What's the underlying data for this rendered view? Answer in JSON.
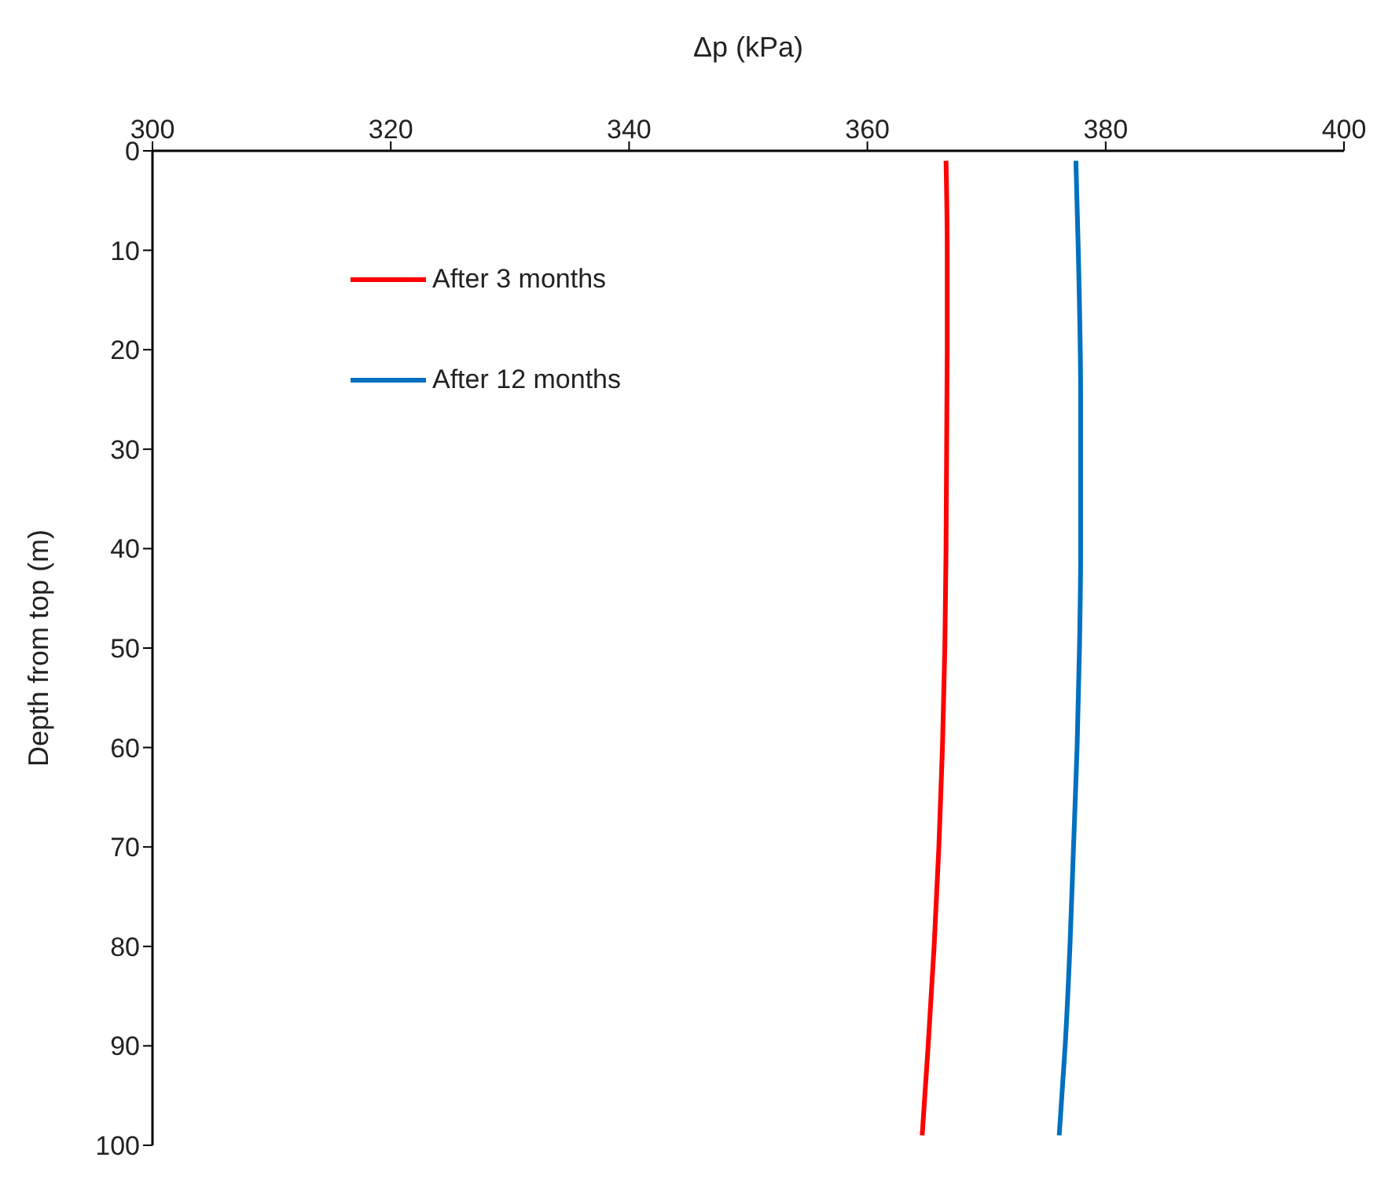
{
  "chart_data": {
    "type": "line",
    "xlabel": "Δp (kPa)",
    "ylabel": "Depth from top (m)",
    "xlim": [
      300,
      400
    ],
    "xticks": [
      300,
      320,
      340,
      360,
      380,
      400
    ],
    "ylim": [
      100,
      0
    ],
    "yticks": [
      0,
      10,
      20,
      30,
      40,
      50,
      60,
      70,
      80,
      90,
      100
    ],
    "grid": false,
    "legend": "top left",
    "marker": "none",
    "line_style": "solid",
    "series": [
      {
        "name": "After 3 months",
        "color": "#ff0000",
        "x": [
          366.6,
          366.7,
          366.7,
          366.6,
          366.5,
          366.3,
          366.0,
          365.6,
          365.1,
          364.6
        ],
        "values": [
          1,
          10,
          20,
          40,
          50,
          60,
          70,
          80,
          90,
          99
        ]
      },
      {
        "name": "After 12 months",
        "color": "#0070c0",
        "x": [
          377.5,
          377.7,
          377.9,
          377.9,
          377.8,
          377.6,
          377.3,
          377.0,
          376.6,
          376.1
        ],
        "values": [
          1,
          10,
          25,
          40,
          50,
          60,
          70,
          80,
          90,
          99
        ]
      }
    ]
  }
}
